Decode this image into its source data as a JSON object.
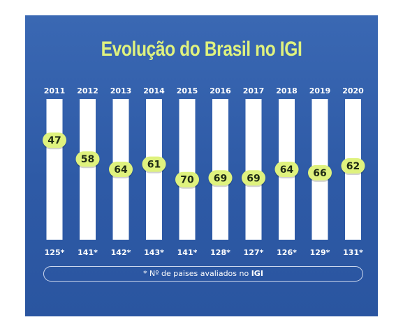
{
  "chart_data": {
    "type": "bar",
    "title": "Evolução do Brasil no IGI",
    "categories": [
      "2011",
      "2012",
      "2013",
      "2014",
      "2015",
      "2016",
      "2017",
      "2018",
      "2019",
      "2020"
    ],
    "series": [
      {
        "values": [
          47,
          58,
          64,
          61,
          70,
          69,
          69,
          64,
          66,
          62
        ]
      }
    ],
    "countries_evaluated": [
      "125*",
      "141*",
      "142*",
      "143*",
      "141*",
      "128*",
      "127*",
      "126*",
      "129*",
      "131*"
    ],
    "ylim": [
      40,
      75
    ],
    "footnote": {
      "prefix": "* Nº de paises avaliados no ",
      "bold": "IGI"
    },
    "colors": {
      "background": "#2e5aa6",
      "bar": "#ffffff",
      "badge": "#dff27e",
      "title": "#dff27e"
    }
  }
}
